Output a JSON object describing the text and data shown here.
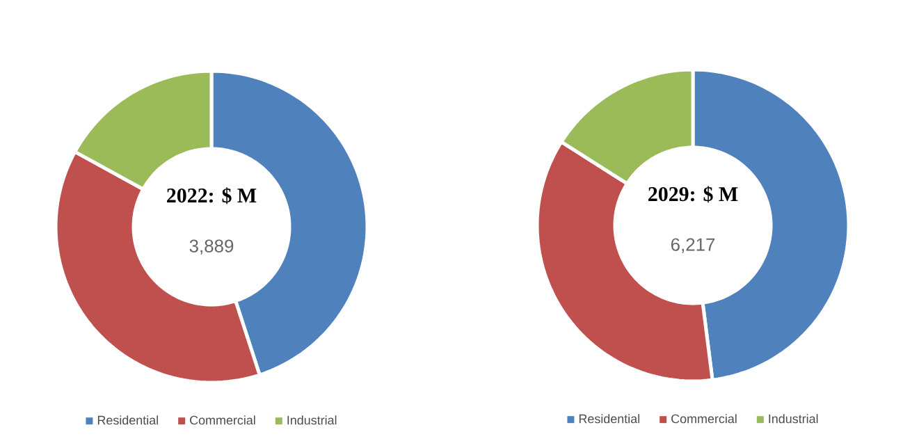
{
  "chart_data": [
    {
      "type": "donut",
      "title": "**2022: $ M**",
      "subtitle": "3,889",
      "categories": [
        "Residential",
        "Commercial",
        "Industrial"
      ],
      "values": [
        45,
        38,
        17
      ],
      "colors": [
        "#4f81bd",
        "#c0504d",
        "#9bbb59"
      ],
      "legend": "bottom"
    },
    {
      "type": "donut",
      "title": "**2029: $ M**",
      "subtitle": "6,217",
      "categories": [
        "Residential",
        "Commercial",
        "Industrial"
      ],
      "values": [
        48,
        36,
        16
      ],
      "colors": [
        "#4f81bd",
        "#c0504d",
        "#9bbb59"
      ],
      "legend": "bottom"
    }
  ]
}
